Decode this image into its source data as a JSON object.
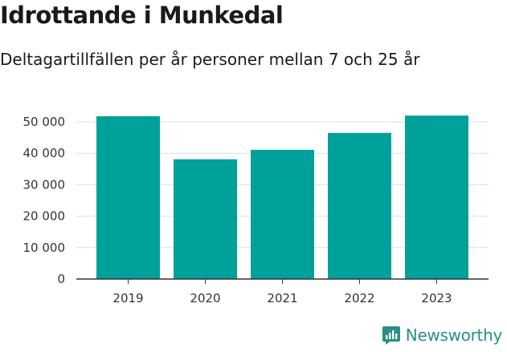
{
  "title": "Idrottande i Munkedal",
  "subtitle": "Deltagartillfällen per år personer mellan 7 och 25 år",
  "brand": {
    "name": "Newsworthy",
    "icon": "newsworthy-logo-icon"
  },
  "colors": {
    "bar": "#00a19a",
    "grid": "#dddddd",
    "axis": "#333333",
    "brand": "#2b8f84"
  },
  "chart_data": {
    "type": "bar",
    "title": "Idrottande i Munkedal",
    "subtitle": "Deltagartillfällen per år personer mellan 7 och 25 år",
    "categories": [
      "2019",
      "2020",
      "2021",
      "2022",
      "2023"
    ],
    "values": [
      51800,
      38100,
      41100,
      46500,
      52000
    ],
    "ylim": [
      0,
      50000
    ],
    "yticks": [
      0,
      10000,
      20000,
      30000,
      40000,
      50000
    ],
    "ytick_labels": [
      "0",
      "10 000",
      "20 000",
      "30 000",
      "40 000",
      "50 000"
    ],
    "xlabel": "",
    "ylabel": "",
    "grid": true,
    "legend": "none"
  }
}
